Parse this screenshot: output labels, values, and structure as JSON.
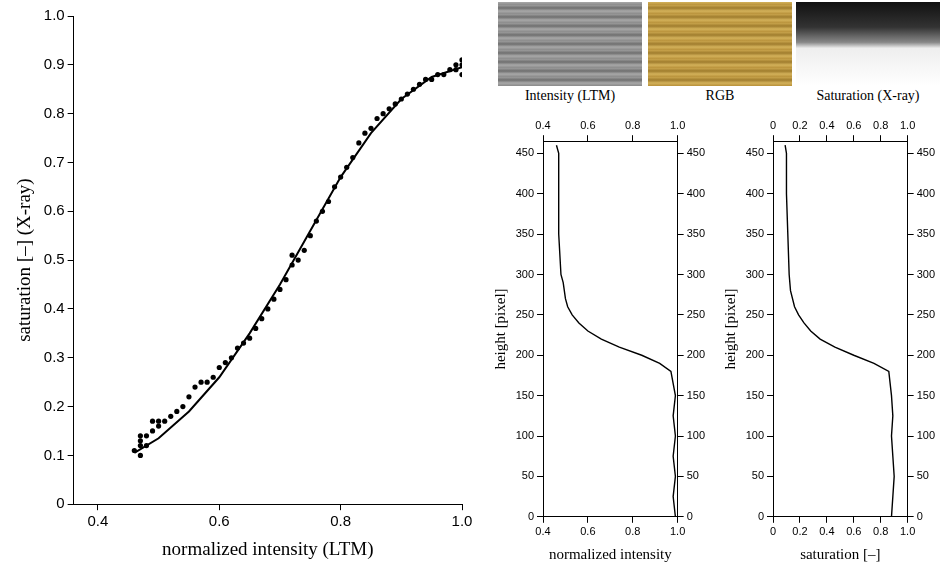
{
  "chart_data": [
    {
      "type": "scatter",
      "x_label": "normalized intensity (LTM)",
      "y_label": "saturation [–] (X-ray)",
      "xlim": [
        0.36,
        1.0
      ],
      "xticks": [
        0.4,
        0.6,
        0.8,
        {
          "value": 1.0,
          "label": "1.0"
        }
      ],
      "ylim": [
        0,
        1.0
      ],
      "yticks": [
        0,
        0.1,
        0.2,
        0.3,
        0.4,
        0.5,
        0.6,
        0.7,
        0.8,
        0.9,
        {
          "value": 1.0,
          "label": "1.0"
        }
      ],
      "grid": false,
      "series": [
        {
          "type": "scatter",
          "marker": "circle",
          "color": "#000000",
          "x": [
            0.46,
            0.47,
            0.47,
            0.47,
            0.47,
            0.48,
            0.48,
            0.49,
            0.49,
            0.5,
            0.5,
            0.51,
            0.52,
            0.53,
            0.54,
            0.55,
            0.56,
            0.57,
            0.58,
            0.59,
            0.6,
            0.61,
            0.62,
            0.63,
            0.64,
            0.65,
            0.66,
            0.67,
            0.68,
            0.69,
            0.7,
            0.71,
            0.72,
            0.72,
            0.73,
            0.74,
            0.75,
            0.76,
            0.77,
            0.78,
            0.79,
            0.8,
            0.81,
            0.82,
            0.83,
            0.84,
            0.85,
            0.86,
            0.87,
            0.88,
            0.89,
            0.9,
            0.91,
            0.92,
            0.93,
            0.94,
            0.95,
            0.96,
            0.97,
            0.98,
            0.99,
            0.99,
            1.0,
            1.0,
            1.0
          ],
          "y": [
            0.11,
            0.1,
            0.12,
            0.13,
            0.14,
            0.12,
            0.14,
            0.15,
            0.17,
            0.16,
            0.17,
            0.17,
            0.18,
            0.19,
            0.2,
            0.22,
            0.24,
            0.25,
            0.25,
            0.26,
            0.28,
            0.29,
            0.3,
            0.32,
            0.33,
            0.34,
            0.36,
            0.38,
            0.4,
            0.42,
            0.44,
            0.46,
            0.49,
            0.51,
            0.5,
            0.52,
            0.55,
            0.58,
            0.6,
            0.62,
            0.65,
            0.67,
            0.69,
            0.71,
            0.74,
            0.76,
            0.77,
            0.79,
            0.8,
            0.81,
            0.82,
            0.83,
            0.84,
            0.85,
            0.86,
            0.87,
            0.87,
            0.88,
            0.88,
            0.89,
            0.89,
            0.9,
            0.88,
            0.9,
            0.91
          ]
        },
        {
          "type": "line",
          "line_style": "solid",
          "color": "#000000",
          "x": [
            0.46,
            0.5,
            0.55,
            0.6,
            0.65,
            0.7,
            0.75,
            0.8,
            0.85,
            0.9,
            0.95,
            1.0
          ],
          "y": [
            0.105,
            0.135,
            0.19,
            0.26,
            0.35,
            0.45,
            0.56,
            0.67,
            0.76,
            0.83,
            0.875,
            0.895
          ]
        }
      ]
    },
    {
      "type": "line",
      "x_label": "normalized intensity",
      "y_label": "height [pixel]",
      "xlim": [
        0.4,
        1.0
      ],
      "xticks": [
        0.4,
        0.6,
        0.8,
        {
          "value": 1.0,
          "label": "1.0"
        }
      ],
      "ylim": [
        0,
        465
      ],
      "yticks": [
        0,
        50,
        100,
        150,
        200,
        250,
        300,
        350,
        400,
        450
      ],
      "grid": false,
      "series": [
        {
          "type": "line",
          "line_style": "solid",
          "color": "#000000",
          "x": [
            0.99,
            0.98,
            0.99,
            0.98,
            0.99,
            0.98,
            0.99,
            0.97,
            0.92,
            0.84,
            0.74,
            0.66,
            0.6,
            0.56,
            0.53,
            0.51,
            0.5,
            0.49,
            0.48,
            0.47,
            0.47,
            0.47,
            0.46
          ],
          "y": [
            0,
            25,
            50,
            75,
            100,
            125,
            150,
            180,
            190,
            200,
            210,
            220,
            230,
            240,
            250,
            260,
            270,
            290,
            300,
            350,
            400,
            450,
            460
          ]
        }
      ]
    },
    {
      "type": "line",
      "x_label": "saturation [–]",
      "y_label": "height [pixel]",
      "xlim": [
        0,
        1.0
      ],
      "xticks": [
        0,
        0.2,
        0.4,
        0.6,
        0.8,
        {
          "value": 1.0,
          "label": "1.0"
        }
      ],
      "ylim": [
        0,
        465
      ],
      "yticks": [
        0,
        50,
        100,
        150,
        200,
        250,
        300,
        350,
        400,
        450
      ],
      "grid": false,
      "series": [
        {
          "type": "line",
          "line_style": "solid",
          "color": "#000000",
          "x": [
            0.88,
            0.89,
            0.9,
            0.89,
            0.88,
            0.89,
            0.88,
            0.86,
            0.75,
            0.6,
            0.46,
            0.35,
            0.28,
            0.23,
            0.19,
            0.16,
            0.13,
            0.12,
            0.11,
            0.1,
            0.1,
            0.09
          ],
          "y": [
            0,
            25,
            50,
            75,
            100,
            125,
            150,
            180,
            190,
            200,
            210,
            220,
            230,
            240,
            250,
            260,
            280,
            300,
            350,
            400,
            450,
            460
          ]
        }
      ]
    }
  ],
  "images": [
    {
      "caption": "Intensity (LTM)"
    },
    {
      "caption": "RGB"
    },
    {
      "caption": "Saturation (X-ray)"
    }
  ]
}
